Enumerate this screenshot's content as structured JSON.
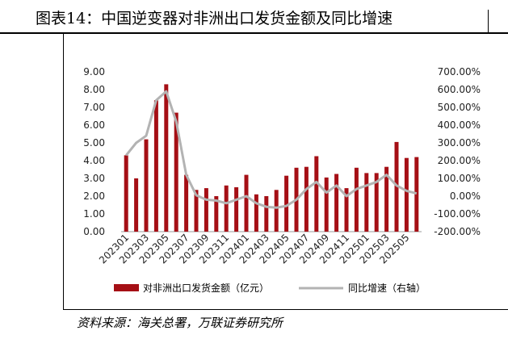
{
  "figure": {
    "title": "图表14：中国逆变器对非洲出口发货金额及同比增速",
    "source": "资料来源：海关总署，万联证券研究所"
  },
  "chart_data": {
    "type": "bar",
    "categories": [
      "202301",
      "202302",
      "202303",
      "202304",
      "202305",
      "202306",
      "202307",
      "202308",
      "202309",
      "202310",
      "202311",
      "202312",
      "202401",
      "202402",
      "202403",
      "202404",
      "202405",
      "202406",
      "202407",
      "202408",
      "202409",
      "202410",
      "202411",
      "202412",
      "202501",
      "202502",
      "202503",
      "202504",
      "202505",
      "202506"
    ],
    "tick_labels": [
      "202301",
      "202303",
      "202305",
      "202307",
      "202309",
      "202311",
      "202401",
      "202403",
      "202405",
      "202407",
      "202409",
      "202411",
      "202501",
      "202503",
      "202505"
    ],
    "series": [
      {
        "name": "对非洲出口发货金额（亿元）",
        "type": "bar",
        "axis": "left",
        "color": "#a50f15",
        "values": [
          4.3,
          3.0,
          5.2,
          7.4,
          8.3,
          6.7,
          3.2,
          2.35,
          2.45,
          2.0,
          2.6,
          2.5,
          3.2,
          2.1,
          2.0,
          2.35,
          3.15,
          3.6,
          3.65,
          4.25,
          3.05,
          3.25,
          2.45,
          3.6,
          3.3,
          3.3,
          3.65,
          5.05,
          4.15,
          4.2
        ]
      },
      {
        "name": "同比增速（右轴）",
        "type": "line",
        "axis": "right",
        "color": "#b3b3b3",
        "values": [
          230,
          300,
          340,
          540,
          590,
          420,
          120,
          5,
          -20,
          -25,
          -40,
          -20,
          0,
          -40,
          -60,
          -65,
          -55,
          -20,
          40,
          80,
          20,
          60,
          0,
          40,
          60,
          80,
          120,
          60,
          30,
          15
        ]
      }
    ],
    "y_left": {
      "ylim": [
        0,
        9
      ],
      "ticks": [
        "9.00",
        "8.00",
        "7.00",
        "6.00",
        "5.00",
        "4.00",
        "3.00",
        "2.00",
        "1.00",
        "0.00"
      ]
    },
    "y_right": {
      "ylim": [
        -200,
        700
      ],
      "ticks": [
        "700.00%",
        "600.00%",
        "500.00%",
        "400.00%",
        "300.00%",
        "200.00%",
        "100.00%",
        "0.00%",
        "-100.00%",
        "-200.00%"
      ]
    },
    "grid": false,
    "legend": "bottom"
  }
}
